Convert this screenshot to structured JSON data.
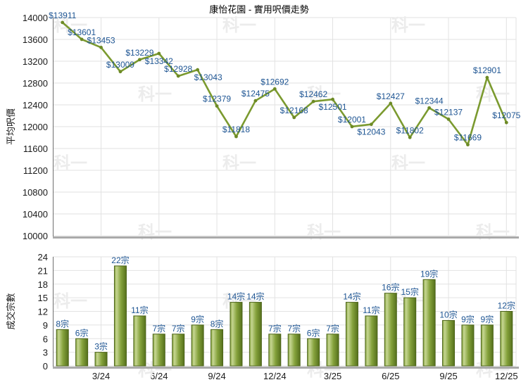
{
  "page": {
    "title": "康怡花園 - 實用呎價走勢",
    "watermark_text": "科一"
  },
  "colors": {
    "line_green": "#7b9a2f",
    "marker_green": "#6d8a26",
    "label_blue": "#1e5593",
    "bar_edge_dark": "#4c641a",
    "bar_fill_light": "#c6d692",
    "bar_fill_mid": "#85a23c",
    "bar_fill_dark": "#55701c",
    "grid": "#e2e2e2",
    "axis_line": "#6e6e6e",
    "baseline_gray": "#aaaaaa",
    "tick_text": "#1a1a1a",
    "title_text": "#000000",
    "watermark": "#ececec"
  },
  "chart_data": [
    {
      "type": "line",
      "title": "康怡花園 - 實用呎價走勢",
      "ylabel": "平均呎價",
      "ylim": [
        10000,
        14000
      ],
      "ytick_step": 400,
      "grid": true,
      "x_tick_labels": [
        "3/24",
        "6/24",
        "9/24",
        "12/24",
        "3/25",
        "6/25",
        "9/25",
        "12/25"
      ],
      "x_tick_indices": [
        2,
        5,
        8,
        11,
        14,
        17,
        20,
        23
      ],
      "values": [
        13911,
        13601,
        13453,
        13009,
        13229,
        13342,
        12928,
        13043,
        12379,
        11818,
        12475,
        12692,
        12168,
        12462,
        12501,
        12001,
        12043,
        12427,
        11802,
        12344,
        12137,
        11669,
        12901,
        12075
      ],
      "point_label_prefix": "$",
      "point_labels": [
        "$13911",
        "$13601",
        "$13453",
        "$13009",
        "$13229",
        "$13342",
        "$12928",
        "$13043",
        "$12379",
        "$11818",
        "$12475",
        "$12692",
        "$12168",
        "$12462",
        "$12501",
        "$12001",
        "$12043",
        "$12427",
        "$11802",
        "$12344",
        "$12137",
        "$11669",
        "$12901",
        "$12075"
      ],
      "label_below_indices": [
        5,
        7,
        14,
        16
      ],
      "label_dx": {
        "7": 15
      }
    },
    {
      "type": "bar",
      "ylabel": "成交宗數",
      "ylim": [
        0,
        24
      ],
      "ytick_step": 3,
      "grid": true,
      "x_tick_labels": [
        "3/24",
        "6/24",
        "9/24",
        "12/24",
        "3/25",
        "6/25",
        "9/25",
        "12/25"
      ],
      "x_tick_indices": [
        2,
        5,
        8,
        11,
        14,
        17,
        20,
        23
      ],
      "values": [
        8,
        6,
        3,
        22,
        11,
        7,
        7,
        9,
        8,
        14,
        14,
        7,
        7,
        6,
        7,
        14,
        11,
        16,
        15,
        19,
        10,
        9,
        9,
        12
      ],
      "bar_label_suffix": "宗",
      "bar_labels": [
        "8宗",
        "6宗",
        "3宗",
        "22宗",
        "11宗",
        "7宗",
        "7宗",
        "9宗",
        "8宗",
        "14宗",
        "14宗",
        "7宗",
        "7宗",
        "6宗",
        "7宗",
        "14宗",
        "11宗",
        "16宗",
        "15宗",
        "19宗",
        "10宗",
        "9宗",
        "9宗",
        "12宗"
      ]
    }
  ]
}
